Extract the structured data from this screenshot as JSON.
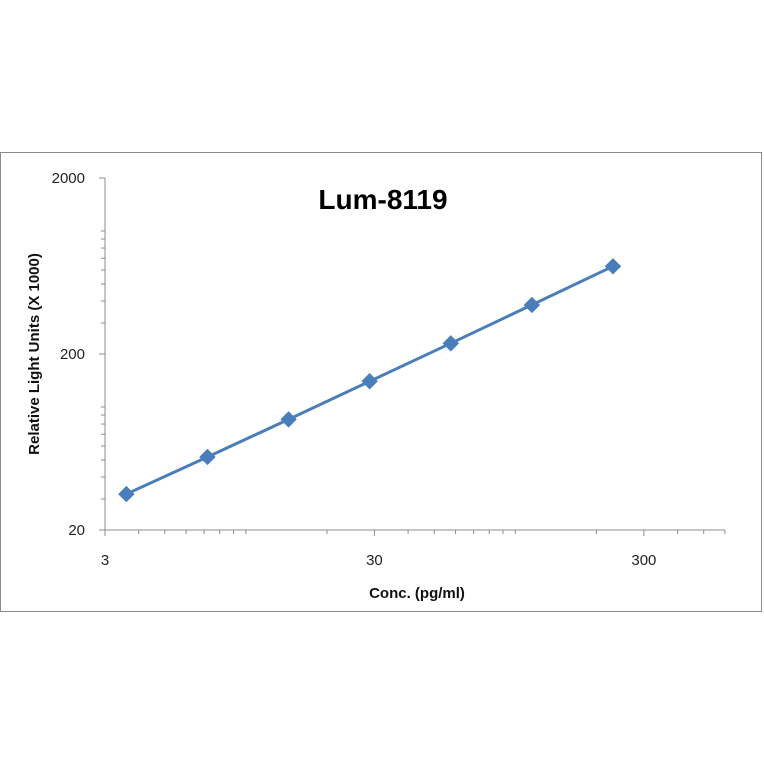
{
  "chart_data": {
    "type": "scatter",
    "title": "Lum-8119",
    "xlabel": "Conc. (pg/ml)",
    "ylabel": "Relative Light Units (X 1000)",
    "x_scale": "log",
    "y_scale": "log",
    "xlim": [
      3,
      600
    ],
    "ylim": [
      20,
      2000
    ],
    "x_ticks": [
      3,
      30,
      300
    ],
    "x_tick_labels": [
      "3",
      "30",
      "300"
    ],
    "y_ticks": [
      20,
      200,
      2000
    ],
    "y_tick_labels": [
      "20",
      "200",
      "2000"
    ],
    "grid": false,
    "legend": false,
    "marker": "diamond",
    "line": true,
    "series": [
      {
        "x": [
          3.6,
          7.2,
          14.4,
          28.8,
          57.6,
          115.2,
          230.4
        ],
        "y": [
          32,
          52,
          85,
          140,
          230,
          380,
          630
        ]
      }
    ],
    "colors": {
      "series": "#4a7ebb",
      "axis": "#8c8c8c",
      "text": "#222222"
    }
  }
}
